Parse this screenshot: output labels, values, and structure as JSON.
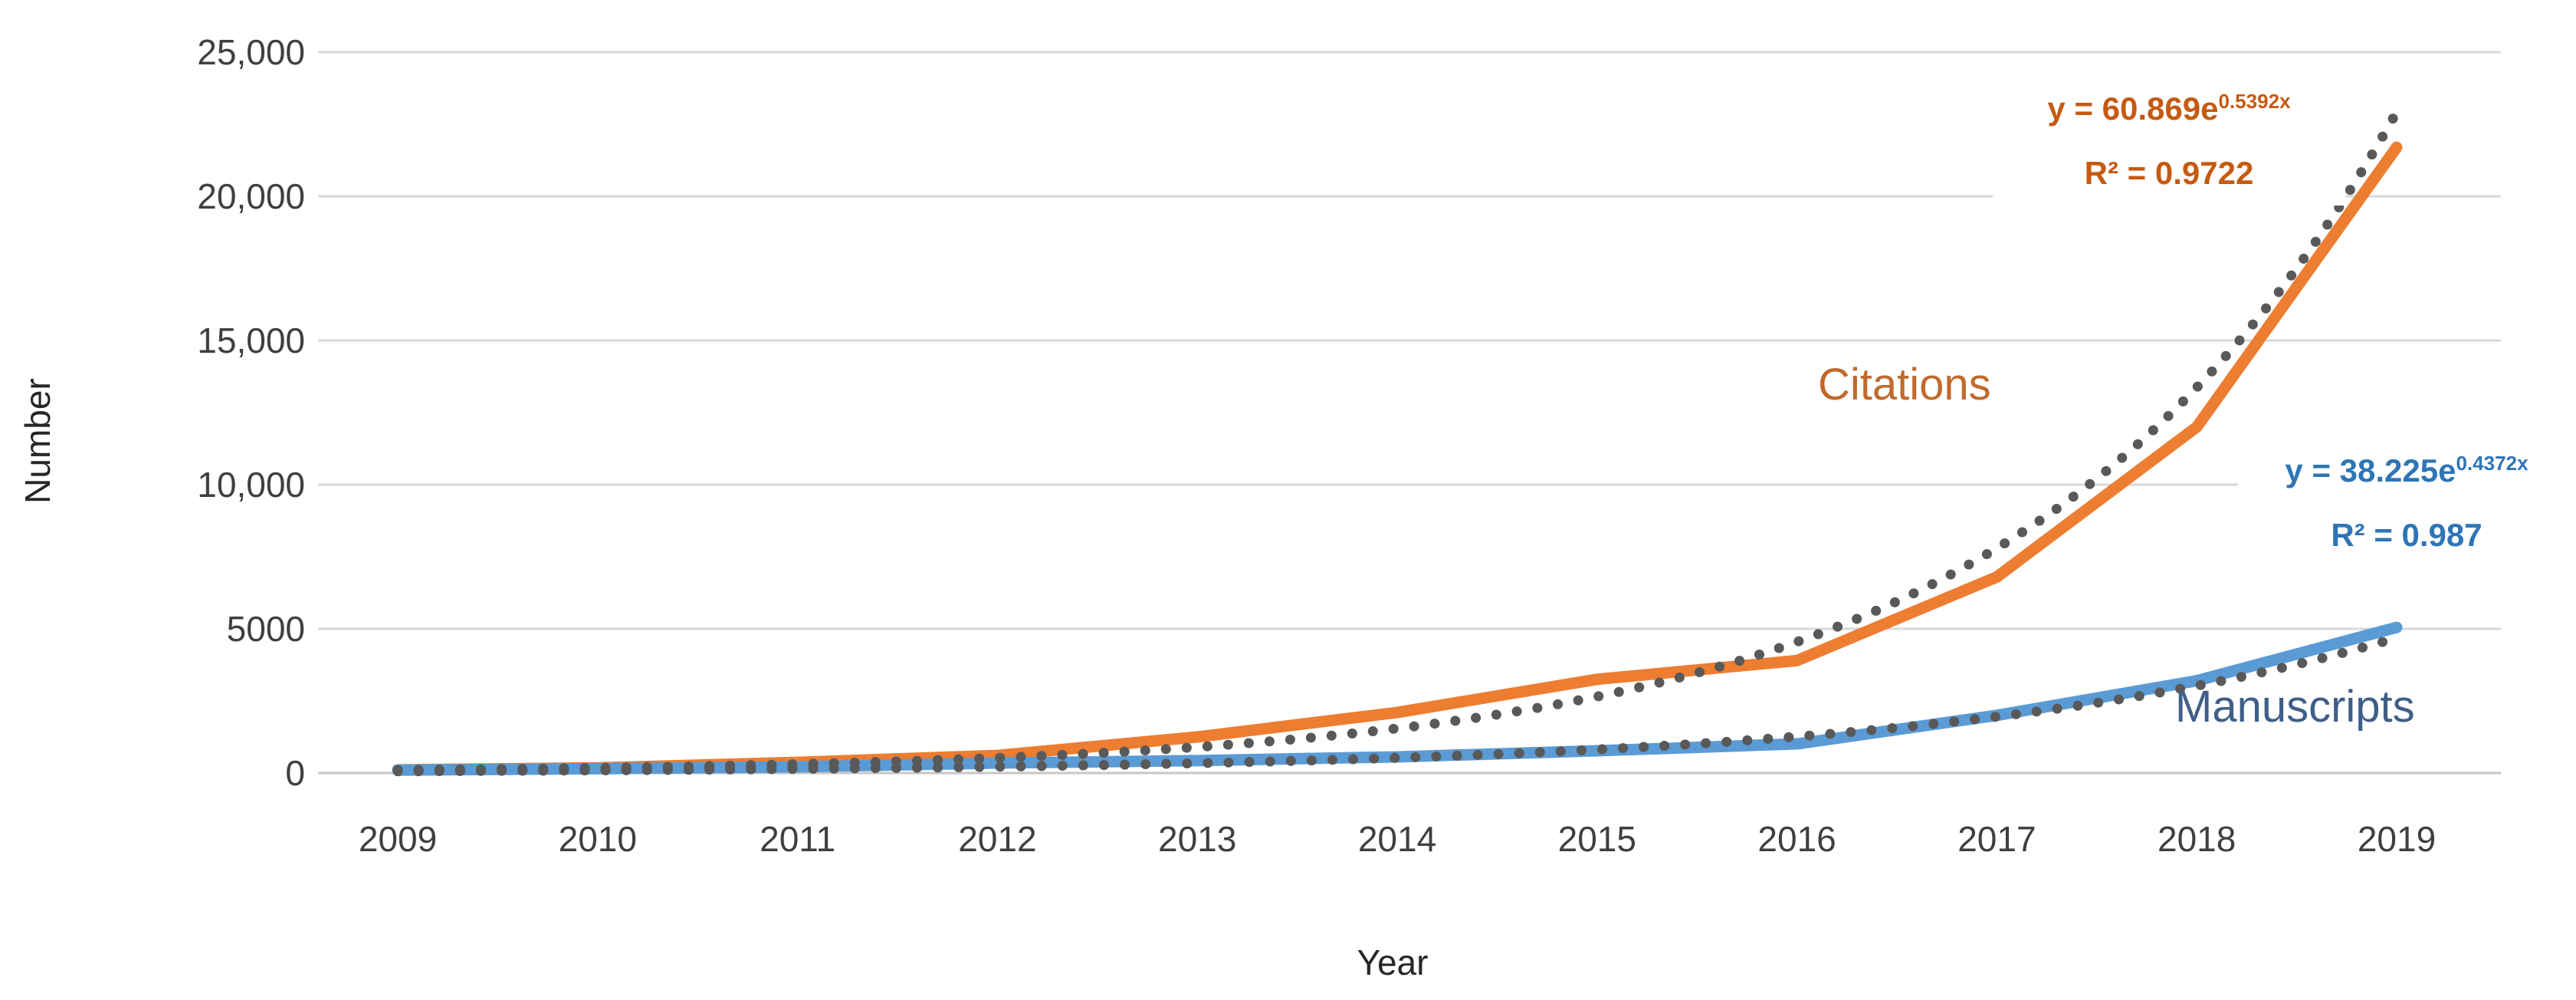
{
  "figure": {
    "background_color": "#ffffff",
    "gridline_color": "#d9d9d9",
    "axis_line_color": "#c6c6c6",
    "tick_text_color": "#3f3f3f"
  },
  "chart_data": {
    "type": "line",
    "title": "",
    "xlabel": "Year",
    "ylabel": "Number",
    "categories": [
      "2009",
      "2010",
      "2011",
      "2012",
      "2013",
      "2014",
      "2015",
      "2016",
      "2017",
      "2018",
      "2019"
    ],
    "y_ticks": [
      {
        "value": 0,
        "label": "0"
      },
      {
        "value": 5000,
        "label": "5000"
      },
      {
        "value": 10000,
        "label": "10,000"
      },
      {
        "value": 15000,
        "label": "15,000"
      },
      {
        "value": 20000,
        "label": "20,000"
      },
      {
        "value": 25000,
        "label": "25,000"
      }
    ],
    "ylim": [
      0,
      25000
    ],
    "grid": true,
    "legend_position": "none",
    "series": [
      {
        "name": "Citations",
        "color": "#ED7D31",
        "label_color": "#C06A2D",
        "values": [
          110,
          180,
          370,
          610,
          1250,
          2100,
          3250,
          3900,
          6800,
          12000,
          21700
        ],
        "trendline": {
          "type": "exponential",
          "a": 60.869,
          "b": 0.5392,
          "equation_base": "y = 60.869e",
          "equation_exponent": "0.5392x",
          "r_squared_label": "R² = 0.9722",
          "text_color": "#C55A11",
          "dot_color": "#595959"
        }
      },
      {
        "name": "Manuscripts",
        "color": "#5B9BD5",
        "label_color": "#3F5E88",
        "values": [
          100,
          150,
          215,
          345,
          430,
          560,
          770,
          1010,
          2000,
          3200,
          5050
        ],
        "trendline": {
          "type": "exponential",
          "a": 38.225,
          "b": 0.4372,
          "equation_base": "y = 38.225e",
          "equation_exponent": "0.4372x",
          "r_squared_label": "R² = 0.987",
          "text_color": "#2E75B6",
          "dot_color": "#595959"
        }
      }
    ]
  }
}
